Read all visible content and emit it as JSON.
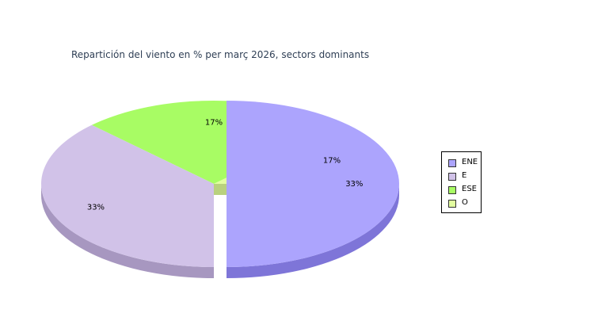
{
  "chart_data": {
    "type": "pie",
    "title": "Repartición del viento en % per març 2026, sectors dominants",
    "categories": [
      "ENE",
      "E",
      "ESE",
      "O"
    ],
    "values": [
      33,
      33,
      17,
      17
    ],
    "labels": [
      "33%",
      "33%",
      "17%",
      "17%"
    ],
    "colors": [
      "#aca4fd",
      "#d1c2e8",
      "#a8fc64",
      "#e2fda0"
    ],
    "side_colors": [
      "#7e75d8",
      "#a797c0",
      "#7fc84c",
      "#b9d17e"
    ],
    "exploded": [
      "ENE"
    ],
    "legend_position": "right"
  }
}
